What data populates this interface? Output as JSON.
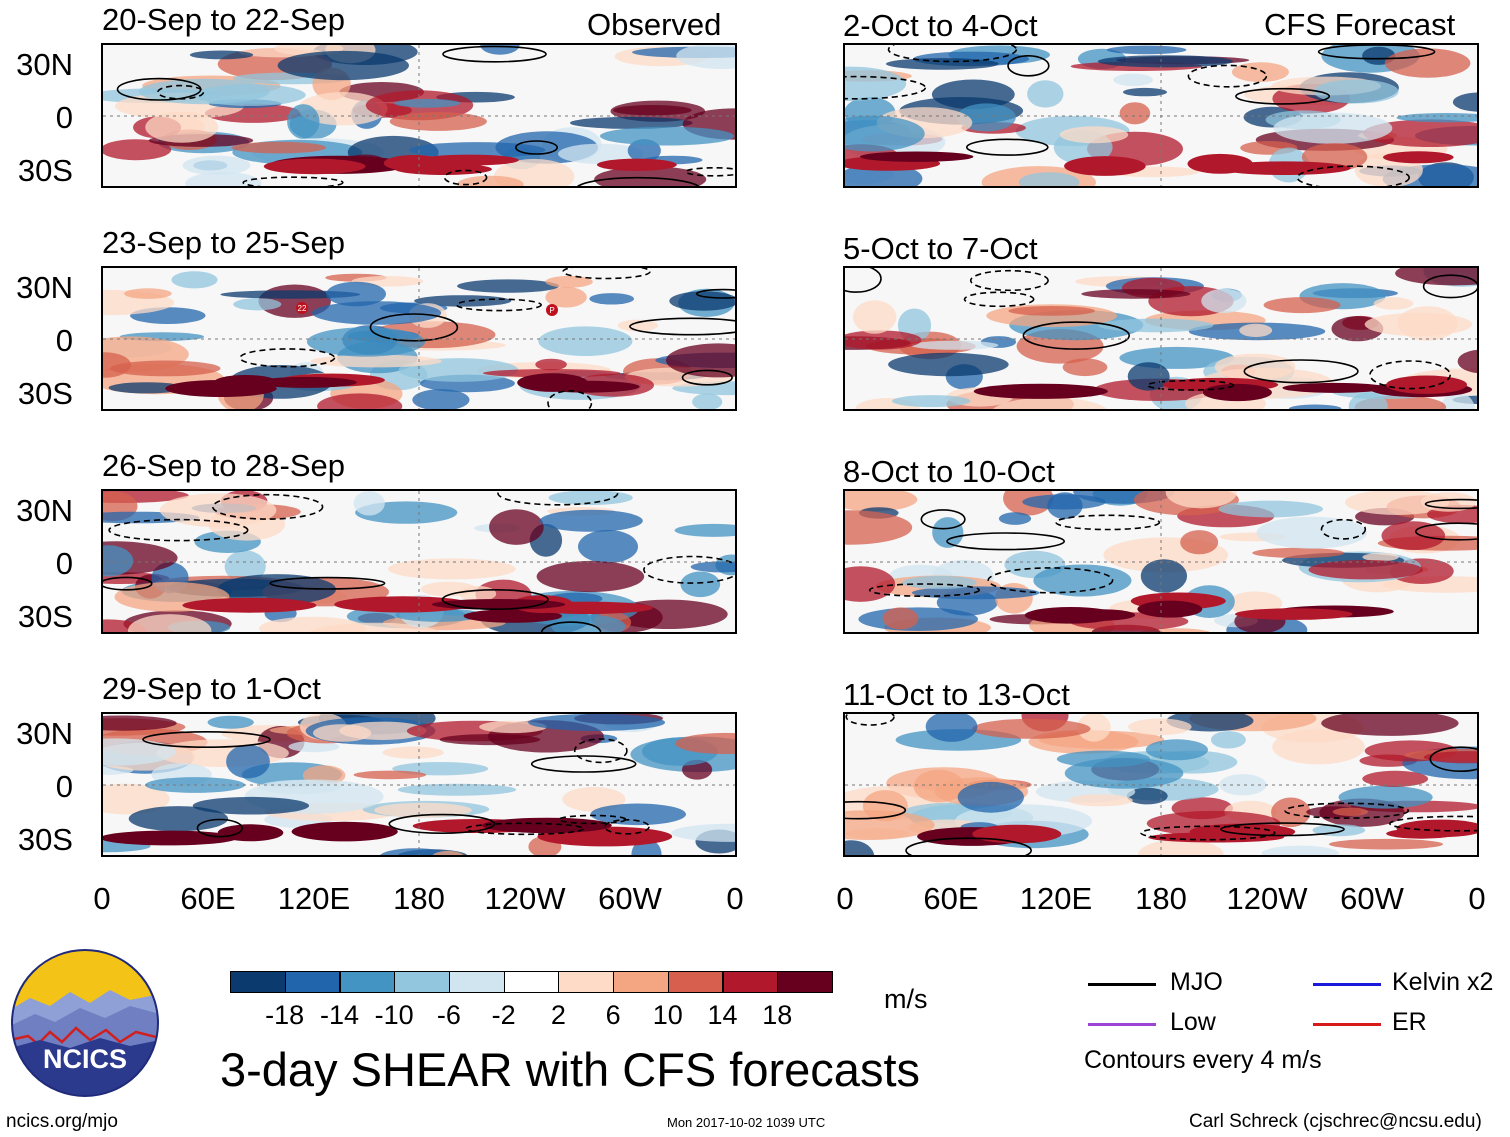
{
  "headers": {
    "observed": "Observed",
    "forecast": "CFS Forecast"
  },
  "panels": {
    "observed": [
      "20-Sep to 22-Sep",
      "23-Sep to 25-Sep",
      "26-Sep to 28-Sep",
      "29-Sep to 1-Oct"
    ],
    "forecast": [
      "2-Oct to 4-Oct",
      "5-Oct to 7-Oct",
      "8-Oct to 10-Oct",
      "11-Oct to 13-Oct"
    ]
  },
  "axes": {
    "lat_ticks": [
      "30N",
      "0",
      "30S"
    ],
    "lon_ticks": [
      "0",
      "60E",
      "120E",
      "180",
      "120W",
      "60W",
      "0"
    ]
  },
  "colorbar": {
    "labels": [
      "-18",
      "-14",
      "-10",
      "-6",
      "-2",
      "2",
      "6",
      "10",
      "14",
      "18"
    ],
    "colors": [
      "#0a3a6e",
      "#2166ac",
      "#4393c3",
      "#92c5de",
      "#d1e5f0",
      "#ffffff",
      "#fddbc7",
      "#f4a582",
      "#d6604d",
      "#b2182b",
      "#67001f"
    ],
    "unit": "m/s"
  },
  "legend": {
    "mjo": "MJO",
    "kelvin": "Kelvin x2",
    "low": "Low",
    "er": "ER",
    "note": "Contours every 4 m/s",
    "colors": {
      "mjo": "#000000",
      "kelvin": "#1a1adb",
      "low": "#9b44d6",
      "er": "#d61a1a"
    }
  },
  "storm_markers": [
    "22",
    "P"
  ],
  "title": "3-day SHEAR with CFS forecasts",
  "logo_text": "NCICS",
  "footer": {
    "url": "ncics.org/mjo",
    "timestamp": "Mon 2017-10-02 1039 UTC",
    "credit": "Carl Schreck (cjschrec@ncsu.edu)"
  }
}
